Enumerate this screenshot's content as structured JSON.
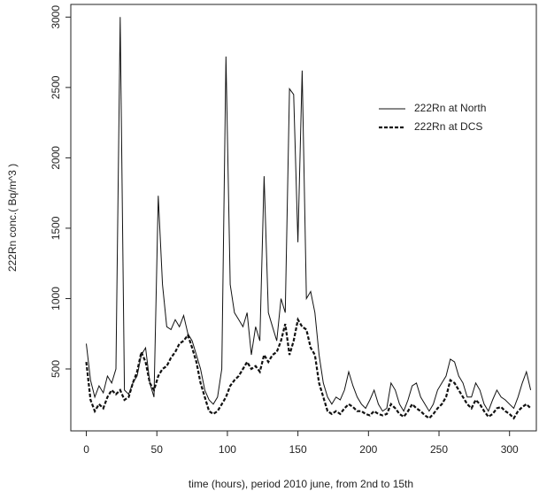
{
  "chart_data": {
    "type": "line",
    "x_label": "time (hours), period 2010 june, from 2nd to 15th",
    "y_label": "222Rn conc.( Bq/m^3 )",
    "x": [
      0,
      3,
      6,
      9,
      12,
      15,
      18,
      21,
      24,
      27,
      30,
      33,
      36,
      39,
      42,
      45,
      48,
      51,
      54,
      57,
      60,
      63,
      66,
      69,
      72,
      75,
      78,
      81,
      84,
      87,
      90,
      93,
      96,
      99,
      102,
      105,
      108,
      111,
      114,
      117,
      120,
      123,
      126,
      129,
      132,
      135,
      138,
      141,
      144,
      147,
      150,
      153,
      156,
      159,
      162,
      165,
      168,
      171,
      174,
      177,
      180,
      183,
      186,
      189,
      192,
      195,
      198,
      201,
      204,
      207,
      210,
      213,
      216,
      219,
      222,
      225,
      228,
      231,
      234,
      237,
      240,
      243,
      246,
      249,
      252,
      255,
      258,
      261,
      264,
      267,
      270,
      273,
      276,
      279,
      282,
      285,
      288,
      291,
      294,
      297,
      300,
      303,
      306,
      309,
      312,
      315
    ],
    "series": [
      {
        "name": "222Rn at North",
        "color": "#111111",
        "line_style": "solid",
        "values": [
          680,
          420,
          300,
          380,
          330,
          450,
          400,
          500,
          3000,
          350,
          320,
          400,
          450,
          600,
          650,
          400,
          300,
          1730,
          1100,
          800,
          780,
          850,
          800,
          880,
          750,
          700,
          600,
          500,
          350,
          280,
          250,
          300,
          500,
          2720,
          1100,
          900,
          850,
          800,
          900,
          600,
          800,
          700,
          1870,
          900,
          800,
          700,
          1000,
          900,
          2490,
          2450,
          1400,
          2620,
          1000,
          1050,
          900,
          600,
          400,
          300,
          250,
          300,
          280,
          350,
          480,
          380,
          300,
          250,
          220,
          280,
          350,
          250,
          200,
          220,
          400,
          350,
          250,
          200,
          280,
          380,
          400,
          300,
          250,
          200,
          250,
          350,
          400,
          450,
          570,
          550,
          450,
          400,
          300,
          300,
          400,
          350,
          250,
          200,
          280,
          350,
          300,
          280,
          250,
          220,
          300,
          400,
          480,
          350
        ]
      },
      {
        "name": "222Rn at DCS",
        "color": "#111111",
        "line_style": "dashed",
        "values": [
          550,
          280,
          200,
          250,
          220,
          300,
          350,
          320,
          350,
          280,
          300,
          400,
          480,
          620,
          550,
          400,
          350,
          450,
          500,
          520,
          580,
          620,
          680,
          700,
          740,
          650,
          550,
          400,
          300,
          200,
          180,
          200,
          250,
          300,
          380,
          420,
          450,
          500,
          550,
          500,
          520,
          480,
          600,
          550,
          600,
          620,
          700,
          820,
          600,
          700,
          850,
          800,
          780,
          650,
          600,
          400,
          300,
          200,
          180,
          200,
          180,
          220,
          250,
          230,
          200,
          200,
          180,
          170,
          200,
          180,
          170,
          180,
          250,
          220,
          180,
          160,
          200,
          250,
          220,
          200,
          170,
          150,
          180,
          220,
          250,
          300,
          420,
          400,
          350,
          300,
          250,
          220,
          280,
          250,
          200,
          160,
          180,
          220,
          230,
          200,
          180,
          150,
          200,
          230,
          250,
          220
        ]
      }
    ],
    "xlim": [
      -11,
      319
    ],
    "ylim": [
      60,
      3090
    ],
    "xticks": [
      0,
      50,
      100,
      150,
      200,
      250,
      300
    ],
    "yticks": [
      500,
      1000,
      1500,
      2000,
      2500,
      3000
    ],
    "legend": "top-right"
  }
}
